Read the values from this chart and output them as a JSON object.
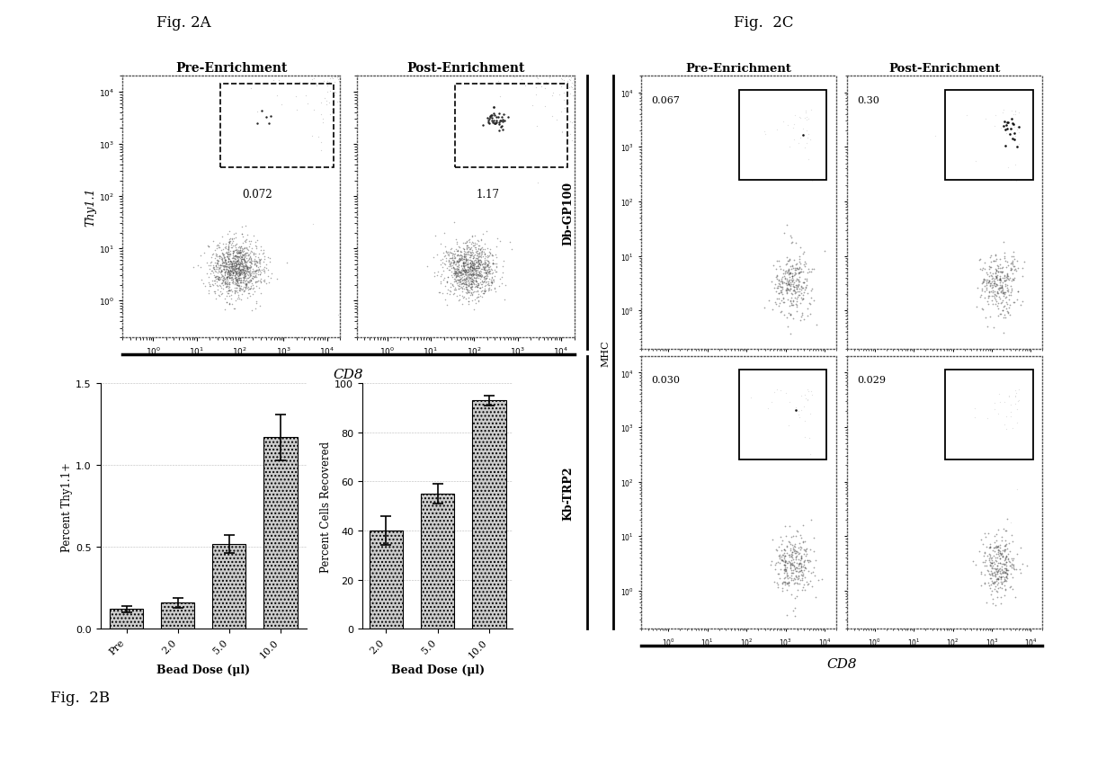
{
  "fig_title_2A": "Fig. 2A",
  "fig_title_2B": "Fig.  2B",
  "fig_title_2C": "Fig.  2C",
  "panel_2A": {
    "pre_label": "Pre-Enrichment",
    "post_label": "Post-Enrichment",
    "pre_percent": "0.072",
    "post_percent": "1.17",
    "ylabel": "Thy1.1",
    "xlabel": "CD8"
  },
  "panel_2B_left": {
    "categories": [
      "Pre",
      "2.0",
      "5.0",
      "10.0"
    ],
    "values": [
      0.12,
      0.16,
      0.52,
      1.17
    ],
    "errors": [
      0.02,
      0.03,
      0.055,
      0.14
    ],
    "ylabel": "Percent Thy1.1+",
    "xlabel": "Bead Dose (μl)",
    "ylim": [
      0,
      1.5
    ],
    "yticks": [
      0.0,
      0.5,
      1.0,
      1.5
    ]
  },
  "panel_2B_right": {
    "categories": [
      "2.0",
      "5.0",
      "10.0"
    ],
    "values": [
      40,
      55,
      93
    ],
    "errors": [
      6,
      4,
      2
    ],
    "ylabel": "Percent Cells Recovered",
    "xlabel": "Bead Dose (μl)",
    "ylim": [
      0,
      100
    ],
    "yticks": [
      0,
      20,
      40,
      60,
      80,
      100
    ]
  },
  "panel_2C": {
    "pre_label": "Pre-Enrichment",
    "post_label": "Post-Enrichment",
    "row1_label": "Db-GP100",
    "row2_label": "Kb-TRP2",
    "mhc_label": "MHC",
    "xlabel": "CD8",
    "pre_post_percent_row1": [
      "0.067",
      "0.30"
    ],
    "pre_post_percent_row2": [
      "0.030",
      "0.029"
    ]
  },
  "background_color": "#ffffff",
  "bar_color": "#cccccc",
  "bar_hatch": "....",
  "ax_bg": "#ffffff"
}
